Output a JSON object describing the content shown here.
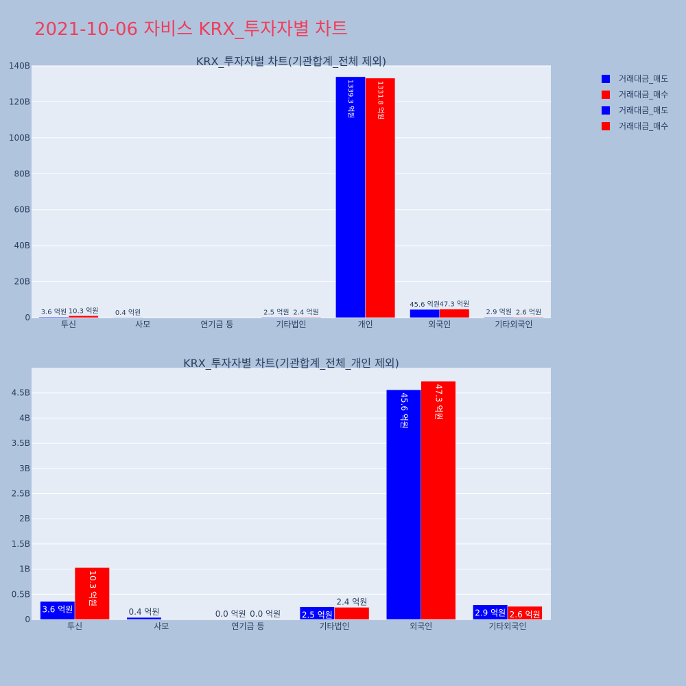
{
  "title": "2021-10-06 자비스 KRX_투자자별 차트",
  "colors": {
    "sell": "#0000ff",
    "buy": "#ff0000",
    "plot_bg": "#e5ecf6",
    "page_bg": "#b0c4de"
  },
  "legend": [
    "거래대금_매도",
    "거래대금_매수",
    "거래대금_매도",
    "거래대금_매수"
  ],
  "chart_data": [
    {
      "type": "bar",
      "title": "KRX_투자자별 차트(기관합계_전체 제외)",
      "categories": [
        "투신",
        "사모",
        "연기금 등",
        "기타법인",
        "개인",
        "외국인",
        "기타외국인"
      ],
      "y_ticks": [
        "0",
        "20B",
        "40B",
        "60B",
        "80B",
        "100B",
        "120B",
        "140B"
      ],
      "ylim": [
        0,
        140
      ],
      "grid": true,
      "series": [
        {
          "name": "거래대금_매도",
          "color": "#0000ff",
          "values": [
            0.36,
            0.04,
            0,
            0.25,
            133.93,
            4.56,
            0.29
          ],
          "labels": [
            "3.6 억원",
            "0.4 억원",
            "",
            "2.5 억원",
            "1339.3 억원",
            "45.6 억원",
            "2.9 억원"
          ]
        },
        {
          "name": "거래대금_매수",
          "color": "#ff0000",
          "values": [
            1.03,
            0,
            0,
            0.24,
            133.18,
            4.73,
            0.26
          ],
          "labels": [
            "10.3 억원",
            "",
            "",
            "2.4 억원",
            "1331.8 억원",
            "47.3 억원",
            "2.6 억원"
          ]
        }
      ]
    },
    {
      "type": "bar",
      "title": "KRX_투자자별 차트(기관합계_전체_개인 제외)",
      "categories": [
        "투신",
        "사모",
        "연기금 등",
        "기타법인",
        "외국인",
        "기타외국인"
      ],
      "y_ticks": [
        "0",
        "0.5B",
        "1B",
        "1.5B",
        "2B",
        "2.5B",
        "3B",
        "3.5B",
        "4B",
        "4.5B"
      ],
      "ylim": [
        0,
        5
      ],
      "grid": true,
      "series": [
        {
          "name": "거래대금_매도",
          "color": "#0000ff",
          "values": [
            0.36,
            0.04,
            0,
            0.25,
            4.56,
            0.29
          ],
          "labels": [
            "3.6 억원",
            "0.4 억원",
            "0.0 억원",
            "2.5 억원",
            "45.6 억원",
            "2.9 억원"
          ]
        },
        {
          "name": "거래대금_매수",
          "color": "#ff0000",
          "values": [
            1.03,
            0,
            0,
            0.24,
            4.73,
            0.26
          ],
          "labels": [
            "10.3 억원",
            "",
            "0.0 억원",
            "2.4 억원",
            "47.3 억원",
            "2.6 억원"
          ]
        }
      ]
    }
  ]
}
